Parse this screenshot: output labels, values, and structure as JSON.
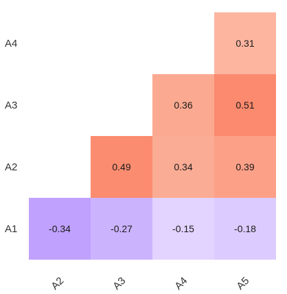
{
  "chart_data": {
    "type": "heatmap",
    "title": "",
    "xlabel": "",
    "ylabel": "",
    "x_categories": [
      "A2",
      "A3",
      "A4",
      "A5"
    ],
    "y_categories": [
      "A4",
      "A3",
      "A2",
      "A1"
    ],
    "layout": "lower-triangular correlation matrix",
    "grid": false,
    "legend": "none",
    "cells": [
      {
        "row": "A4",
        "col": "A5",
        "value": 0.31,
        "label": "0.31",
        "color": "#FDB5A0"
      },
      {
        "row": "A3",
        "col": "A4",
        "value": 0.36,
        "label": "0.36",
        "color": "#FBA990"
      },
      {
        "row": "A3",
        "col": "A5",
        "value": 0.51,
        "label": "0.51",
        "color": "#FB8A6E"
      },
      {
        "row": "A2",
        "col": "A3",
        "value": 0.49,
        "label": "0.49",
        "color": "#FB8C70"
      },
      {
        "row": "A2",
        "col": "A4",
        "value": 0.34,
        "label": "0.34",
        "color": "#FBAC94"
      },
      {
        "row": "A2",
        "col": "A5",
        "value": 0.39,
        "label": "0.39",
        "color": "#FCA088"
      },
      {
        "row": "A1",
        "col": "A2",
        "value": -0.34,
        "label": "-0.34",
        "color": "#C0A1FD"
      },
      {
        "row": "A1",
        "col": "A3",
        "value": -0.27,
        "label": "-0.27",
        "color": "#CCB3FE"
      },
      {
        "row": "A1",
        "col": "A4",
        "value": -0.15,
        "label": "-0.15",
        "color": "#E2D3FF"
      },
      {
        "row": "A1",
        "col": "A5",
        "value": -0.18,
        "label": "-0.18",
        "color": "#DCCBFE"
      }
    ]
  }
}
